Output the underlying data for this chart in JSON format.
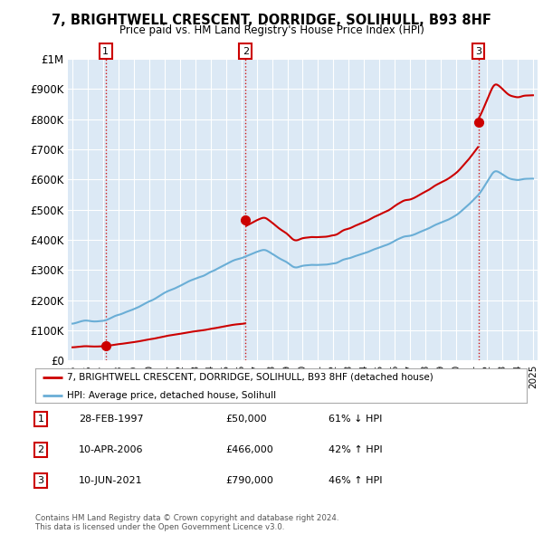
{
  "title": "7, BRIGHTWELL CRESCENT, DORRIDGE, SOLIHULL, B93 8HF",
  "subtitle": "Price paid vs. HM Land Registry's House Price Index (HPI)",
  "sale_years_decimal": [
    1997.16,
    2006.27,
    2021.44
  ],
  "sale_prices": [
    50000,
    466000,
    790000
  ],
  "sale_labels": [
    "1",
    "2",
    "3"
  ],
  "legend_entries": [
    "7, BRIGHTWELL CRESCENT, DORRIDGE, SOLIHULL, B93 8HF (detached house)",
    "HPI: Average price, detached house, Solihull"
  ],
  "table_rows": [
    [
      "1",
      "28-FEB-1997",
      "£50,000",
      "61% ↓ HPI"
    ],
    [
      "2",
      "10-APR-2006",
      "£466,000",
      "42% ↑ HPI"
    ],
    [
      "3",
      "10-JUN-2021",
      "£790,000",
      "46% ↑ HPI"
    ]
  ],
  "footer": "Contains HM Land Registry data © Crown copyright and database right 2024.\nThis data is licensed under the Open Government Licence v3.0.",
  "price_line_color": "#cc0000",
  "hpi_line_color": "#6aaed6",
  "background_color": "#ffffff",
  "plot_bg_color": "#dce9f5",
  "grid_color": "#ffffff",
  "ylim": [
    0,
    1000000
  ],
  "ytick_labels": [
    "£0",
    "£100K",
    "£200K",
    "£300K",
    "£400K",
    "£500K",
    "£600K",
    "£700K",
    "£800K",
    "£900K",
    "£1M"
  ],
  "xlim_start": 1994.7,
  "xlim_end": 2025.3,
  "xticks": [
    1995,
    1996,
    1997,
    1998,
    1999,
    2000,
    2001,
    2002,
    2003,
    2004,
    2005,
    2006,
    2007,
    2008,
    2009,
    2010,
    2011,
    2012,
    2013,
    2014,
    2015,
    2016,
    2017,
    2018,
    2019,
    2020,
    2021,
    2022,
    2023,
    2024,
    2025
  ]
}
